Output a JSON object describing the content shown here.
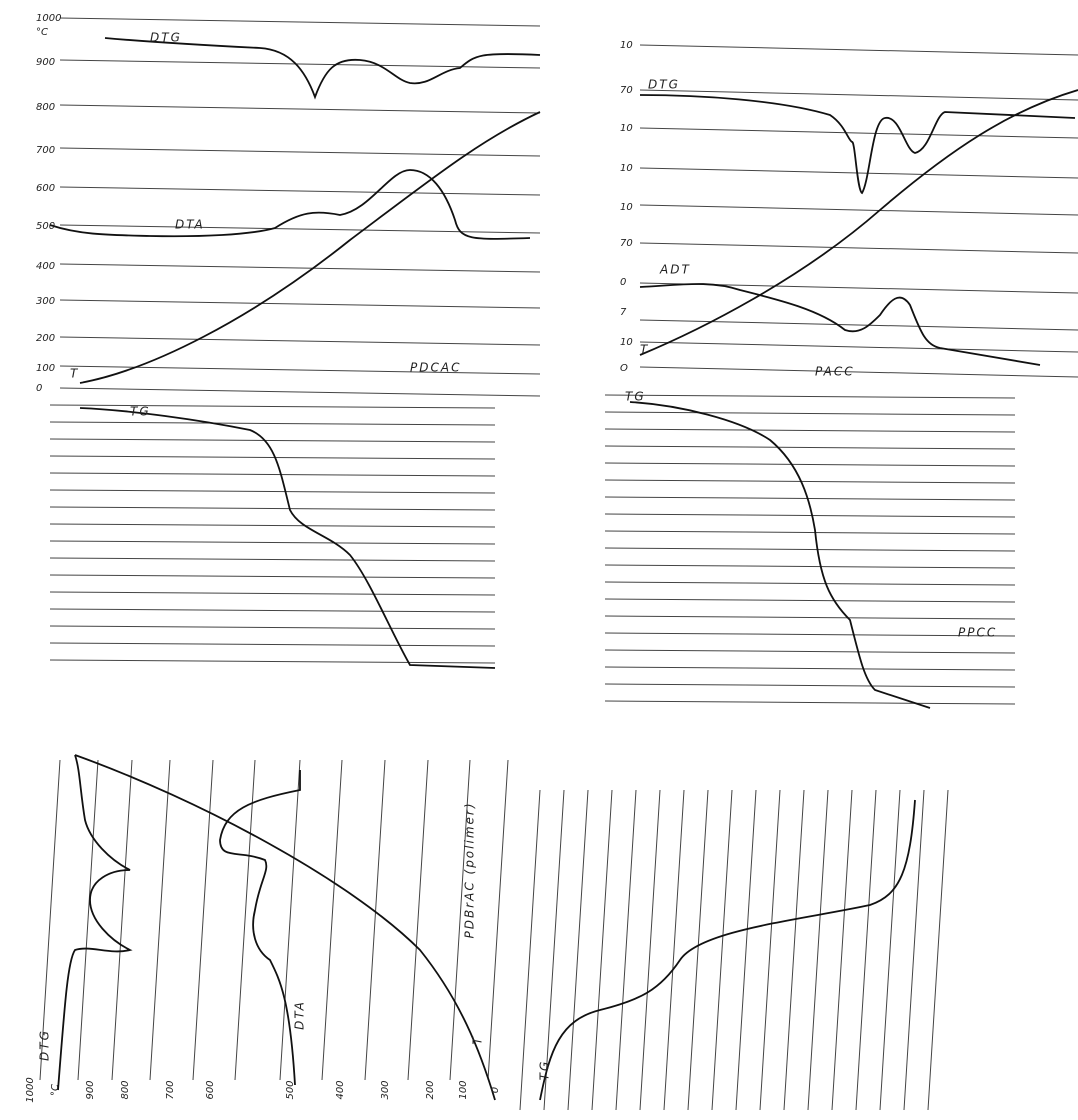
{
  "panels": [
    {
      "title": "PDCAC",
      "axis_labels": [
        "1000",
        "°C",
        "900",
        "800",
        "700",
        "600",
        "500",
        "400",
        "300",
        "200",
        "100",
        "0"
      ],
      "curve_labels": [
        "DTG",
        "DTA",
        "T",
        "TG"
      ]
    },
    {
      "title": "PACC",
      "axis_labels": [
        "10",
        "70",
        "10",
        "10",
        "10",
        "70",
        "0",
        "7",
        "10",
        "O"
      ],
      "curve_labels": [
        "DTG",
        "ADT",
        "T",
        "TG",
        "PPCC"
      ]
    },
    {
      "title": "PDBrAC (polimer)",
      "axis_labels": [
        "1000",
        "°C",
        "900",
        "800",
        "700",
        "600",
        "500",
        "400",
        "300",
        "200",
        "100",
        "0"
      ],
      "curve_labels": [
        "DTG",
        "DTA",
        "T",
        "TG"
      ]
    }
  ]
}
